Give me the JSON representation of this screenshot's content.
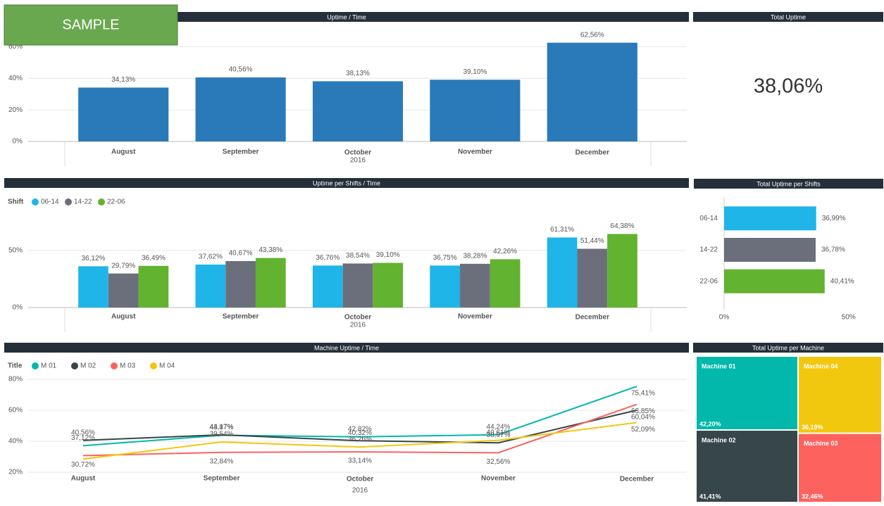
{
  "badge": "SAMPLE",
  "chart_data": [
    {
      "type": "bar",
      "title": "Uptime / Time",
      "x_label": "2016",
      "categories": [
        "August",
        "September",
        "October",
        "November",
        "December"
      ],
      "values": [
        34.13,
        40.56,
        38.13,
        39.1,
        62.56
      ],
      "value_labels": [
        "34,13%",
        "40,56%",
        "38,13%",
        "39,10%",
        "62,56%"
      ],
      "color": "#2a7ab9",
      "ylim": [
        0,
        70
      ],
      "yticks": [
        {
          "value": 0,
          "label": "0%"
        },
        {
          "value": 20,
          "label": "20%"
        },
        {
          "value": 40,
          "label": "40%"
        },
        {
          "value": 60,
          "label": "60%"
        }
      ],
      "grid": true
    },
    {
      "type": "card",
      "title": "Total Uptime",
      "values": [
        38.06
      ],
      "value_labels": [
        "38,06%"
      ]
    },
    {
      "type": "grouped_bar",
      "title": "Uptime per Shifts / Time",
      "legend_title": "Shift",
      "x_label": "2016",
      "categories": [
        "August",
        "September",
        "October",
        "November",
        "December"
      ],
      "series": [
        {
          "name": "06-14",
          "color": "#1fb5e8",
          "values": [
            36.12,
            37.62,
            36.76,
            36.75,
            61.31
          ],
          "value_labels": [
            "36,12%",
            "37,62%",
            "36,76%",
            "36,75%",
            "61,31%"
          ]
        },
        {
          "name": "14-22",
          "color": "#6b6f7b",
          "values": [
            29.79,
            40.67,
            38.54,
            38.28,
            51.44
          ],
          "value_labels": [
            "29,79%",
            "40,67%",
            "38,54%",
            "38,28%",
            "51,44%"
          ]
        },
        {
          "name": "22-06",
          "color": "#62b330",
          "values": [
            36.49,
            43.38,
            39.1,
            42.26,
            64.38
          ],
          "value_labels": [
            "36,49%",
            "43,38%",
            "39,10%",
            "42,26%",
            "64,38%"
          ]
        }
      ],
      "ylim": [
        0,
        85
      ],
      "yticks": [
        {
          "value": 0,
          "label": "0%"
        },
        {
          "value": 50,
          "label": "50%"
        }
      ],
      "grid": true
    },
    {
      "type": "hbar",
      "title": "Total Uptime per Shifts",
      "categories": [
        "06-14",
        "14-22",
        "22-06"
      ],
      "values": [
        36.99,
        36.78,
        40.41
      ],
      "value_labels": [
        "36,99%",
        "36,78%",
        "40,41%"
      ],
      "colors": [
        "#1fb5e8",
        "#6b6f7b",
        "#62b330"
      ],
      "xlim": [
        0,
        60
      ],
      "xticks": [
        {
          "value": 0,
          "label": "0%"
        },
        {
          "value": 50,
          "label": "50%"
        }
      ]
    },
    {
      "type": "line",
      "title": "Machine Uptime / Time",
      "legend_title": "Title",
      "x_label": "2016",
      "categories": [
        "August",
        "September",
        "October",
        "November",
        "December"
      ],
      "series": [
        {
          "name": "M 01",
          "color": "#01b8aa",
          "values": [
            37.12,
            43.87,
            42.82,
            44.24,
            75.41
          ],
          "value_labels": [
            "37,12%",
            "43,87%",
            "42,82%",
            "44,24%",
            "75,41%"
          ]
        },
        {
          "name": "M 02",
          "color": "#374649",
          "values": [
            40.56,
            44.17,
            40.32,
            38.97,
            60.04
          ],
          "value_labels": [
            "40,56%",
            "44,17%",
            "40,32%",
            "38,97%",
            "60,04%"
          ]
        },
        {
          "name": "M 03",
          "color": "#fd625e",
          "values": [
            30.72,
            32.84,
            33.14,
            32.56,
            63.85
          ],
          "value_labels": [
            "30,72%",
            "32,84%",
            "33,14%",
            "32,56%",
            "63,85%"
          ]
        },
        {
          "name": "M 04",
          "color": "#f2c80f",
          "values": [
            28.5,
            39.54,
            36.26,
            40.61,
            52.09
          ],
          "value_labels": [
            null,
            "39,54%",
            "36,26%",
            "40,61%",
            "52,09%"
          ]
        }
      ],
      "ylim": [
        15,
        85
      ],
      "yticks": [
        {
          "value": 20,
          "label": "20%"
        },
        {
          "value": 40,
          "label": "40%"
        },
        {
          "value": 60,
          "label": "60%"
        },
        {
          "value": 80,
          "label": "80%"
        }
      ],
      "grid": true
    },
    {
      "type": "treemap",
      "title": "Total Uptime per Machine",
      "categories": [
        "Machine 01",
        "Machine 02",
        "Machine 04",
        "Machine 03"
      ],
      "values": [
        42.2,
        41.41,
        36.19,
        32.46
      ],
      "value_labels": [
        "42,20%",
        "41,41%",
        "36,19%",
        "32,46%"
      ],
      "colors": [
        "#01b8aa",
        "#374649",
        "#f2c80f",
        "#fd625e"
      ]
    }
  ]
}
